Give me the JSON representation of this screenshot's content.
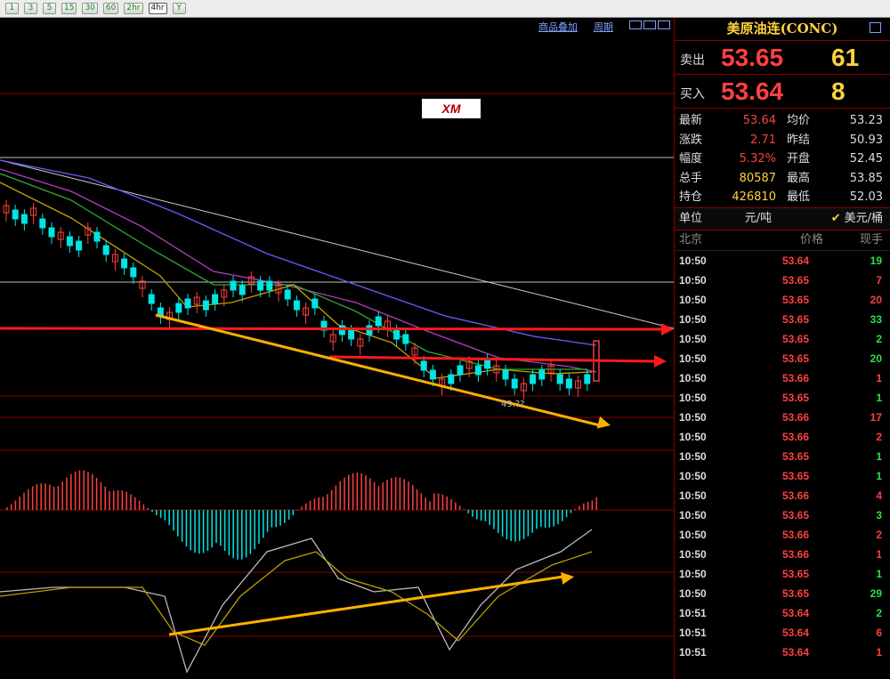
{
  "toolbar": {
    "buttons": [
      "1",
      "3",
      "5",
      "15",
      "30",
      "60",
      "2hr",
      "4hr",
      "Y"
    ],
    "active_index": 7
  },
  "chart_header": {
    "overlay_label": "商品叠加",
    "period_label": "周期"
  },
  "chart": {
    "logo_text": "XM",
    "price_label": "49.??"
  },
  "instrument": {
    "title": "美原油连(CONC)"
  },
  "quote": {
    "sell_label": "卖出",
    "sell_price": "53.65",
    "sell_volume": "61",
    "buy_label": "买入",
    "buy_price": "53.64",
    "buy_volume": "8"
  },
  "stats": [
    {
      "k": "最新",
      "v": "53.64",
      "vc": "red",
      "k2": "均价",
      "v2": "53.23"
    },
    {
      "k": "涨跌",
      "v": "2.71",
      "vc": "red",
      "k2": "昨结",
      "v2": "50.93"
    },
    {
      "k": "幅度",
      "v": "5.32%",
      "vc": "red",
      "k2": "开盘",
      "v2": "52.45"
    },
    {
      "k": "总手",
      "v": "80587",
      "vc": "yellow",
      "k2": "最高",
      "v2": "53.85"
    },
    {
      "k": "持仓",
      "v": "426810",
      "vc": "yellow",
      "k2": "最低",
      "v2": "52.03"
    }
  ],
  "unit": {
    "label": "单位",
    "option1": "元/吨",
    "option2": "美元/桶"
  },
  "trades_header": {
    "time": "北京",
    "price": "价格",
    "qty": "现手"
  },
  "trades": [
    {
      "t": "10:50",
      "p": "53.64",
      "q": "19",
      "c": "green"
    },
    {
      "t": "10:50",
      "p": "53.65",
      "q": "7",
      "c": "red"
    },
    {
      "t": "10:50",
      "p": "53.65",
      "q": "20",
      "c": "red"
    },
    {
      "t": "10:50",
      "p": "53.65",
      "q": "33",
      "c": "green"
    },
    {
      "t": "10:50",
      "p": "53.65",
      "q": "2",
      "c": "green"
    },
    {
      "t": "10:50",
      "p": "53.65",
      "q": "20",
      "c": "green"
    },
    {
      "t": "10:50",
      "p": "53.66",
      "q": "1",
      "c": "red"
    },
    {
      "t": "10:50",
      "p": "53.65",
      "q": "1",
      "c": "green"
    },
    {
      "t": "10:50",
      "p": "53.66",
      "q": "17",
      "c": "red"
    },
    {
      "t": "10:50",
      "p": "53.66",
      "q": "2",
      "c": "red"
    },
    {
      "t": "10:50",
      "p": "53.65",
      "q": "1",
      "c": "green"
    },
    {
      "t": "10:50",
      "p": "53.65",
      "q": "1",
      "c": "green"
    },
    {
      "t": "10:50",
      "p": "53.66",
      "q": "4",
      "c": "red"
    },
    {
      "t": "10:50",
      "p": "53.65",
      "q": "3",
      "c": "green"
    },
    {
      "t": "10:50",
      "p": "53.66",
      "q": "2",
      "c": "red"
    },
    {
      "t": "10:50",
      "p": "53.66",
      "q": "1",
      "c": "red"
    },
    {
      "t": "10:50",
      "p": "53.65",
      "q": "1",
      "c": "green"
    },
    {
      "t": "10:50",
      "p": "53.65",
      "q": "29",
      "c": "green"
    },
    {
      "t": "10:51",
      "p": "53.64",
      "q": "2",
      "c": "green"
    },
    {
      "t": "10:51",
      "p": "53.64",
      "q": "6",
      "c": "red"
    },
    {
      "t": "10:51",
      "p": "53.64",
      "q": "1",
      "c": "red"
    }
  ],
  "colors": {
    "up": "#ff4040",
    "down": "#00e5e5",
    "accent": "#ffd23c",
    "panel_border": "#8b0000",
    "arrow_red": "#ff1a1a",
    "arrow_orange": "#ffb000"
  }
}
